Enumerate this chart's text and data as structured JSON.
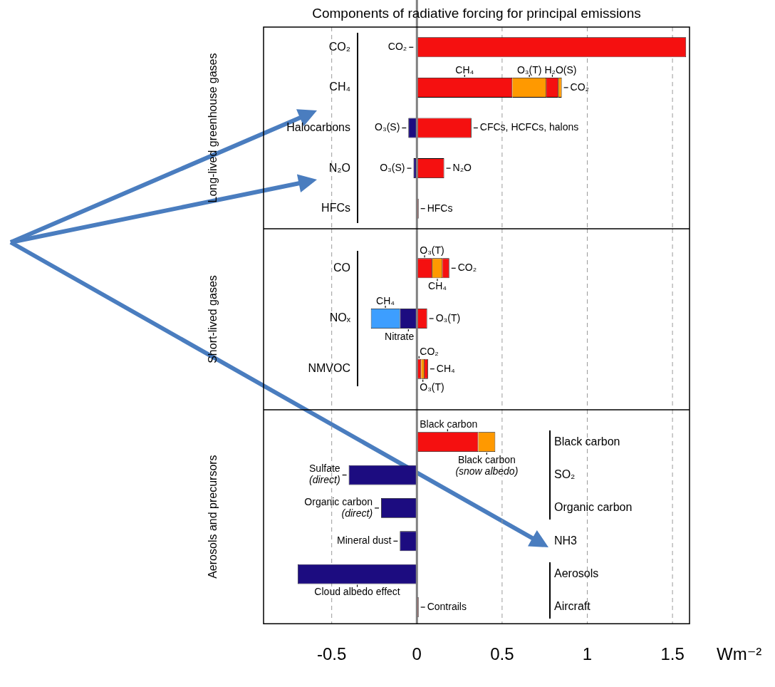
{
  "chart_data": [
    {
      "type": "bar",
      "orientation": "horizontal",
      "stacked": true,
      "title": "Components of radiative forcing for principal emissions",
      "ylabel": "Long-lived greenhouse gases",
      "categories": [
        "CO₂",
        "CH₄",
        "Halocarbons",
        "N₂O",
        "HFCs"
      ],
      "series": [
        {
          "name": "CH₄",
          "color": "#f51010",
          "values": [
            null,
            0.56,
            null,
            null,
            null
          ]
        },
        {
          "name": "O₃(T)",
          "color": "#ff9900",
          "values": [
            null,
            0.2,
            null,
            null,
            null
          ]
        },
        {
          "name": "H₂O(S)",
          "color": "#f51010",
          "values": [
            null,
            0.07,
            null,
            null,
            null
          ]
        },
        {
          "name": "CO₂",
          "colors": [
            "#f51010",
            "#ff9900",
            "#f51010",
            "#f51010",
            "#f51010"
          ],
          "values": [
            1.58,
            0.02,
            null,
            null,
            null
          ]
        },
        {
          "name": "CFCs, HCFCs, halons",
          "color": "#f51010",
          "values": [
            null,
            null,
            0.32,
            null,
            null
          ]
        },
        {
          "name": "N₂O",
          "color": "#f51010",
          "values": [
            null,
            null,
            null,
            0.16,
            null
          ]
        },
        {
          "name": "HFCs",
          "color": "#f51010",
          "values": [
            null,
            null,
            null,
            null,
            0.01
          ]
        },
        {
          "name": "O₃(S)",
          "color": "#1c0c80",
          "values": [
            null,
            null,
            -0.05,
            -0.02,
            null
          ]
        }
      ],
      "xlim": [
        -0.9,
        1.6
      ],
      "xticks": [
        -0.5,
        0,
        0.5,
        1,
        1.5
      ],
      "grid": "x",
      "tick_labels": "y",
      "ref_lines": [
        {
          "axis": "x",
          "value": 0,
          "color": "#808080"
        }
      ]
    },
    {
      "type": "bar",
      "orientation": "horizontal",
      "stacked": true,
      "ylabel": "Short-lived gases",
      "categories": [
        "CO",
        "NOₓ",
        "NMVOC"
      ],
      "series": [
        {
          "name": "Nitrate",
          "color": "#1c0c80",
          "values": [
            null,
            -0.1,
            null
          ]
        },
        {
          "name": "O₃(T)",
          "color": "#f51010",
          "values": [
            0.09,
            0.06,
            null
          ]
        },
        {
          "name": "CH₄",
          "colors": [
            "#ff9900",
            "#3d9eff",
            "#ff9900"
          ],
          "values": [
            0.06,
            -0.17,
            null
          ]
        },
        {
          "name": "CO₂",
          "color": "#f51010",
          "values": [
            0.04,
            null,
            null
          ]
        },
        {
          "name": "CO₂",
          "color": "#f51010",
          "values": [
            null,
            null,
            0.025
          ]
        },
        {
          "name": "O₃(T)",
          "color": "#ff9900",
          "values": [
            null,
            null,
            0.02
          ]
        },
        {
          "name": "CH₄",
          "color": "#f51010",
          "values": [
            null,
            null,
            0.02
          ]
        }
      ],
      "xlim": [
        -0.9,
        1.6
      ],
      "xticks": [
        -0.5,
        0,
        0.5,
        1,
        1.5
      ],
      "grid": "x",
      "tick_labels": "y",
      "ref_lines": [
        {
          "axis": "x",
          "value": 0,
          "color": "#808080"
        }
      ]
    },
    {
      "type": "bar",
      "orientation": "horizontal",
      "stacked": true,
      "ylabel": "Aerosols and precursors",
      "xlabel": "Wm⁻²",
      "categories": [
        null,
        null,
        null,
        null,
        null,
        null
      ],
      "y2_categories": [
        "Black carbon",
        "SO₂",
        "Organic carbon",
        "NH3",
        "Aerosols",
        "Aircraft"
      ],
      "series": [
        {
          "name": "Black carbon",
          "color": "#f51010",
          "values": [
            0.36,
            null,
            null,
            null,
            null,
            null
          ]
        },
        {
          "name": "Black carbon (snow albedo)",
          "color": "#ff9900",
          "values": [
            0.1,
            null,
            null,
            null,
            null,
            null
          ]
        },
        {
          "name": "Sulfate (direct)",
          "color": "#1c0c80",
          "values": [
            null,
            -0.4,
            null,
            null,
            null,
            null
          ]
        },
        {
          "name": "Organic carbon (direct)",
          "color": "#1c0c80",
          "values": [
            null,
            null,
            -0.21,
            null,
            null,
            null
          ]
        },
        {
          "name": "Mineral dust",
          "color": "#1c0c80",
          "values": [
            null,
            null,
            null,
            -0.1,
            null,
            null
          ]
        },
        {
          "name": "Cloud albedo effect",
          "color": "#1c0c80",
          "values": [
            null,
            null,
            null,
            null,
            -0.7,
            null
          ]
        },
        {
          "name": "Contrails",
          "color": "#f51010",
          "values": [
            null,
            null,
            null,
            null,
            null,
            0.01
          ]
        }
      ],
      "xlim": [
        -0.9,
        1.6
      ],
      "xticks": [
        -0.5,
        0,
        0.5,
        1,
        1.5
      ],
      "grid": "x",
      "ref_lines": [
        {
          "axis": "x",
          "value": 0,
          "color": "#808080"
        }
      ]
    }
  ]
}
